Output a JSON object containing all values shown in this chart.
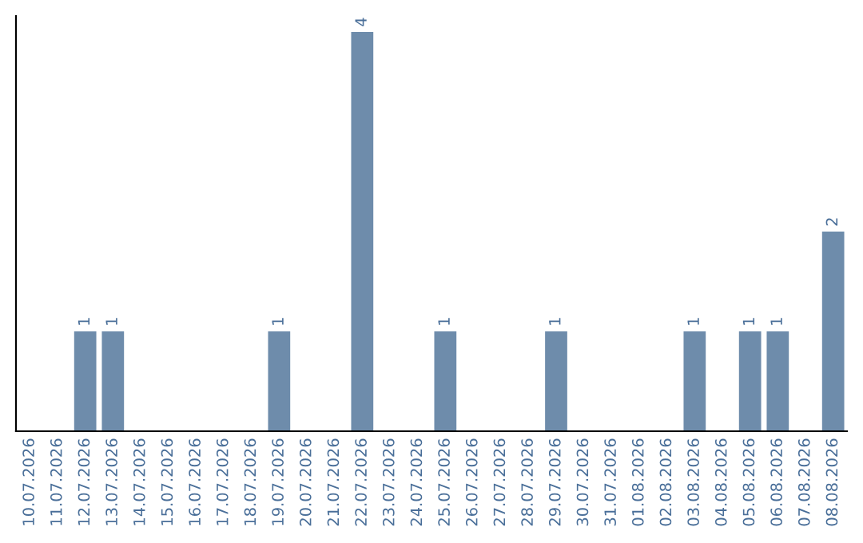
{
  "chart_data": {
    "type": "bar",
    "categories": [
      "10.07.2026",
      "11.07.2026",
      "12.07.2026",
      "13.07.2026",
      "14.07.2026",
      "15.07.2026",
      "16.07.2026",
      "17.07.2026",
      "18.07.2026",
      "19.07.2026",
      "20.07.2026",
      "21.07.2026",
      "22.07.2026",
      "23.07.2026",
      "24.07.2026",
      "25.07.2026",
      "26.07.2026",
      "27.07.2026",
      "28.07.2026",
      "29.07.2026",
      "30.07.2026",
      "31.07.2026",
      "01.08.2026",
      "02.08.2026",
      "03.08.2026",
      "04.08.2026",
      "05.08.2026",
      "06.08.2026",
      "07.08.2026",
      "08.08.2026"
    ],
    "values": [
      0,
      0,
      1,
      1,
      0,
      0,
      0,
      0,
      0,
      1,
      0,
      0,
      4,
      0,
      0,
      1,
      0,
      0,
      0,
      1,
      0,
      0,
      0,
      0,
      1,
      0,
      1,
      1,
      0,
      2
    ],
    "color": "#6e8cab",
    "value_labels": [
      null,
      null,
      "1",
      "1",
      null,
      null,
      null,
      null,
      null,
      "1",
      null,
      null,
      "4",
      null,
      null,
      "1",
      null,
      null,
      null,
      "1",
      null,
      null,
      null,
      null,
      "1",
      null,
      "1",
      "1",
      null,
      "2"
    ],
    "tick_labels": "x"
  }
}
